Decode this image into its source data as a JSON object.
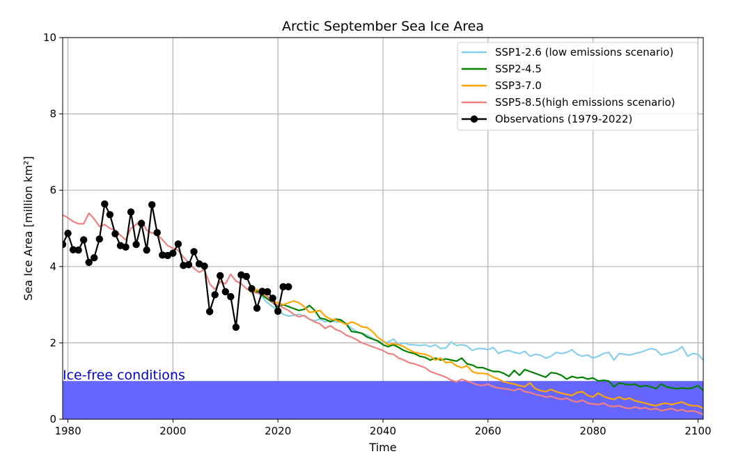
{
  "chart_data": {
    "type": "line",
    "title": "Arctic September Sea Ice Area",
    "xlabel": "Time",
    "ylabel": "Sea Ice Area [million km²]",
    "xlim": [
      1979,
      2101
    ],
    "ylim": [
      0,
      10
    ],
    "xticks": [
      1980,
      2000,
      2020,
      2040,
      2060,
      2080,
      2100
    ],
    "yticks": [
      0,
      2,
      4,
      6,
      8,
      10
    ],
    "grid": true,
    "legend_position": "top-right",
    "ice_free": {
      "label": "Ice-free conditions",
      "threshold": 1,
      "color": "#6666ff",
      "text_color": "#0000cc"
    },
    "series": [
      {
        "name": "SSP1-2.6 (low emissions scenario)",
        "color": "#87ceeb",
        "x": [
          2015,
          2016,
          2017,
          2018,
          2019,
          2020,
          2021,
          2022,
          2023,
          2024,
          2025,
          2026,
          2027,
          2028,
          2029,
          2030,
          2031,
          2032,
          2033,
          2034,
          2035,
          2036,
          2037,
          2038,
          2039,
          2040,
          2041,
          2042,
          2043,
          2044,
          2045,
          2046,
          2047,
          2048,
          2049,
          2050,
          2051,
          2052,
          2053,
          2054,
          2055,
          2056,
          2057,
          2058,
          2059,
          2060,
          2061,
          2062,
          2063,
          2064,
          2065,
          2066,
          2067,
          2068,
          2069,
          2070,
          2071,
          2072,
          2073,
          2074,
          2075,
          2076,
          2077,
          2078,
          2079,
          2080,
          2081,
          2082,
          2083,
          2084,
          2085,
          2086,
          2087,
          2088,
          2089,
          2090,
          2091,
          2092,
          2093,
          2094,
          2095,
          2096,
          2097,
          2098,
          2099,
          2100,
          2101
        ],
        "y": [
          3.3,
          3.35,
          3.2,
          3.05,
          2.95,
          2.85,
          2.75,
          2.7,
          2.72,
          2.75,
          2.7,
          2.62,
          2.58,
          2.62,
          2.55,
          2.6,
          2.55,
          2.55,
          2.5,
          2.38,
          2.3,
          2.25,
          2.2,
          2.12,
          2.05,
          2.0,
          2.02,
          2.1,
          1.95,
          2.0,
          1.95,
          1.95,
          1.93,
          1.95,
          1.9,
          1.95,
          1.85,
          1.87,
          2.02,
          1.93,
          1.95,
          1.92,
          1.8,
          1.85,
          1.85,
          1.82,
          1.88,
          1.72,
          1.78,
          1.8,
          1.75,
          1.72,
          1.78,
          1.65,
          1.7,
          1.68,
          1.6,
          1.65,
          1.75,
          1.72,
          1.75,
          1.82,
          1.7,
          1.65,
          1.68,
          1.6,
          1.65,
          1.72,
          1.75,
          1.55,
          1.72,
          1.7,
          1.68,
          1.72,
          1.75,
          1.8,
          1.85,
          1.82,
          1.68,
          1.72,
          1.75,
          1.8,
          1.9,
          1.65,
          1.72,
          1.7,
          1.55
        ]
      },
      {
        "name": "SSP2-4.5",
        "color": "#008000",
        "x": [
          2015,
          2016,
          2017,
          2018,
          2019,
          2020,
          2021,
          2022,
          2023,
          2024,
          2025,
          2026,
          2027,
          2028,
          2029,
          2030,
          2031,
          2032,
          2033,
          2034,
          2035,
          2036,
          2037,
          2038,
          2039,
          2040,
          2041,
          2042,
          2043,
          2044,
          2045,
          2046,
          2047,
          2048,
          2049,
          2050,
          2051,
          2052,
          2053,
          2054,
          2055,
          2056,
          2057,
          2058,
          2059,
          2060,
          2061,
          2062,
          2063,
          2064,
          2065,
          2066,
          2067,
          2068,
          2069,
          2070,
          2071,
          2072,
          2073,
          2074,
          2075,
          2076,
          2077,
          2078,
          2079,
          2080,
          2081,
          2082,
          2083,
          2084,
          2085,
          2086,
          2087,
          2088,
          2089,
          2090,
          2091,
          2092,
          2093,
          2094,
          2095,
          2096,
          2097,
          2098,
          2099,
          2100,
          2101
        ],
        "y": [
          3.3,
          3.35,
          3.25,
          3.15,
          3.05,
          2.95,
          3.0,
          2.95,
          2.9,
          2.85,
          2.88,
          2.98,
          2.85,
          2.65,
          2.62,
          2.55,
          2.62,
          2.6,
          2.5,
          2.3,
          2.28,
          2.25,
          2.15,
          2.1,
          2.05,
          1.95,
          1.9,
          1.95,
          1.88,
          1.8,
          1.75,
          1.72,
          1.65,
          1.62,
          1.55,
          1.6,
          1.55,
          1.58,
          1.55,
          1.52,
          1.6,
          1.45,
          1.42,
          1.35,
          1.35,
          1.3,
          1.25,
          1.25,
          1.2,
          1.12,
          1.28,
          1.15,
          1.3,
          1.25,
          1.2,
          1.15,
          1.1,
          1.22,
          1.2,
          1.15,
          1.05,
          1.12,
          1.08,
          1.1,
          1.05,
          1.08,
          1.0,
          1.02,
          1.0,
          0.85,
          0.95,
          0.92,
          0.9,
          0.92,
          0.85,
          0.88,
          0.85,
          0.8,
          0.92,
          0.85,
          0.82,
          0.8,
          0.82,
          0.8,
          0.82,
          0.88,
          0.75
        ]
      },
      {
        "name": "SSP3-7.0",
        "color": "#ffa500",
        "x": [
          2015,
          2016,
          2017,
          2018,
          2019,
          2020,
          2021,
          2022,
          2023,
          2024,
          2025,
          2026,
          2027,
          2028,
          2029,
          2030,
          2031,
          2032,
          2033,
          2034,
          2035,
          2036,
          2037,
          2038,
          2039,
          2040,
          2041,
          2042,
          2043,
          2044,
          2045,
          2046,
          2047,
          2048,
          2049,
          2050,
          2051,
          2052,
          2053,
          2054,
          2055,
          2056,
          2057,
          2058,
          2059,
          2060,
          2061,
          2062,
          2063,
          2064,
          2065,
          2066,
          2067,
          2068,
          2069,
          2070,
          2071,
          2072,
          2073,
          2074,
          2075,
          2076,
          2077,
          2078,
          2079,
          2080,
          2081,
          2082,
          2083,
          2084,
          2085,
          2086,
          2087,
          2088,
          2089,
          2090,
          2091,
          2092,
          2093,
          2094,
          2095,
          2096,
          2097,
          2098,
          2099,
          2100,
          2101
        ],
        "y": [
          3.3,
          3.4,
          3.3,
          3.2,
          3.1,
          3.05,
          3.0,
          3.05,
          3.1,
          3.05,
          2.95,
          2.8,
          2.82,
          2.85,
          2.7,
          2.62,
          2.6,
          2.55,
          2.48,
          2.55,
          2.5,
          2.42,
          2.4,
          2.3,
          2.15,
          2.05,
          1.95,
          1.98,
          1.95,
          1.9,
          1.82,
          1.75,
          1.72,
          1.7,
          1.65,
          1.55,
          1.6,
          1.48,
          1.5,
          1.4,
          1.35,
          1.4,
          1.25,
          1.2,
          1.2,
          1.18,
          1.1,
          1.05,
          0.98,
          0.95,
          0.92,
          0.88,
          0.85,
          0.95,
          0.8,
          0.75,
          0.72,
          0.78,
          0.72,
          0.68,
          0.65,
          0.62,
          0.7,
          0.72,
          0.62,
          0.58,
          0.68,
          0.6,
          0.55,
          0.52,
          0.58,
          0.52,
          0.55,
          0.48,
          0.45,
          0.42,
          0.38,
          0.35,
          0.4,
          0.42,
          0.38,
          0.42,
          0.45,
          0.38,
          0.35,
          0.35,
          0.28
        ]
      },
      {
        "name": "SSP5-8.5(high emissions scenario)",
        "color": "#f08080",
        "x": [
          1979,
          1980,
          1981,
          1982,
          1983,
          1984,
          1985,
          1986,
          1987,
          1988,
          1989,
          1990,
          1991,
          1992,
          1993,
          1994,
          1995,
          1996,
          1997,
          1998,
          1999,
          2000,
          2001,
          2002,
          2003,
          2004,
          2005,
          2006,
          2007,
          2008,
          2009,
          2010,
          2011,
          2012,
          2013,
          2014,
          2015,
          2016,
          2017,
          2018,
          2019,
          2020,
          2021,
          2022,
          2023,
          2024,
          2025,
          2026,
          2027,
          2028,
          2029,
          2030,
          2031,
          2032,
          2033,
          2034,
          2035,
          2036,
          2037,
          2038,
          2039,
          2040,
          2041,
          2042,
          2043,
          2044,
          2045,
          2046,
          2047,
          2048,
          2049,
          2050,
          2051,
          2052,
          2053,
          2054,
          2055,
          2056,
          2057,
          2058,
          2059,
          2060,
          2061,
          2062,
          2063,
          2064,
          2065,
          2066,
          2067,
          2068,
          2069,
          2070,
          2071,
          2072,
          2073,
          2074,
          2075,
          2076,
          2077,
          2078,
          2079,
          2080,
          2081,
          2082,
          2083,
          2084,
          2085,
          2086,
          2087,
          2088,
          2089,
          2090,
          2091,
          2092,
          2093,
          2094,
          2095,
          2096,
          2097,
          2098,
          2099,
          2100,
          2101
        ],
        "y": [
          5.35,
          5.28,
          5.18,
          5.12,
          5.12,
          5.4,
          5.25,
          5.05,
          5.1,
          5.0,
          4.95,
          4.82,
          4.7,
          5.0,
          5.1,
          5.22,
          4.95,
          4.88,
          4.85,
          4.7,
          4.55,
          4.48,
          4.42,
          4.25,
          4.1,
          3.95,
          3.85,
          3.92,
          3.55,
          3.4,
          3.6,
          3.55,
          3.8,
          3.62,
          3.55,
          3.42,
          3.35,
          3.3,
          3.3,
          3.22,
          3.05,
          3.0,
          2.92,
          2.85,
          2.75,
          2.68,
          2.72,
          2.62,
          2.55,
          2.5,
          2.38,
          2.45,
          2.35,
          2.3,
          2.2,
          2.15,
          2.08,
          2.0,
          1.95,
          1.9,
          1.85,
          1.8,
          1.72,
          1.7,
          1.6,
          1.55,
          1.48,
          1.45,
          1.4,
          1.35,
          1.25,
          1.2,
          1.15,
          1.1,
          1.02,
          0.98,
          1.05,
          1.0,
          0.95,
          0.9,
          0.88,
          0.92,
          0.85,
          0.82,
          0.8,
          0.78,
          0.75,
          0.8,
          0.72,
          0.7,
          0.65,
          0.62,
          0.58,
          0.6,
          0.55,
          0.52,
          0.55,
          0.48,
          0.45,
          0.5,
          0.42,
          0.4,
          0.38,
          0.42,
          0.35,
          0.33,
          0.35,
          0.3,
          0.28,
          0.32,
          0.28,
          0.3,
          0.25,
          0.28,
          0.22,
          0.25,
          0.28,
          0.22,
          0.25,
          0.2,
          0.22,
          0.18,
          0.12
        ]
      },
      {
        "name": "Observations (1979-2022)",
        "color": "#000000",
        "markers": true,
        "x": [
          1979,
          1980,
          1981,
          1982,
          1983,
          1984,
          1985,
          1986,
          1987,
          1988,
          1989,
          1990,
          1991,
          1992,
          1993,
          1994,
          1995,
          1996,
          1997,
          1998,
          1999,
          2000,
          2001,
          2002,
          2003,
          2004,
          2005,
          2006,
          2007,
          2008,
          2009,
          2010,
          2011,
          2012,
          2013,
          2014,
          2015,
          2016,
          2017,
          2018,
          2019,
          2020,
          2021,
          2022
        ],
        "y": [
          4.58,
          4.87,
          4.44,
          4.43,
          4.7,
          4.11,
          4.23,
          4.72,
          5.64,
          5.36,
          4.86,
          4.55,
          4.51,
          5.43,
          4.58,
          5.13,
          4.43,
          5.62,
          4.89,
          4.3,
          4.29,
          4.35,
          4.59,
          4.03,
          4.05,
          4.39,
          4.07,
          4.01,
          2.82,
          3.26,
          3.76,
          3.34,
          3.21,
          2.41,
          3.78,
          3.74,
          3.42,
          2.91,
          3.35,
          3.34,
          3.17,
          2.83,
          3.47,
          3.47
        ]
      }
    ]
  }
}
